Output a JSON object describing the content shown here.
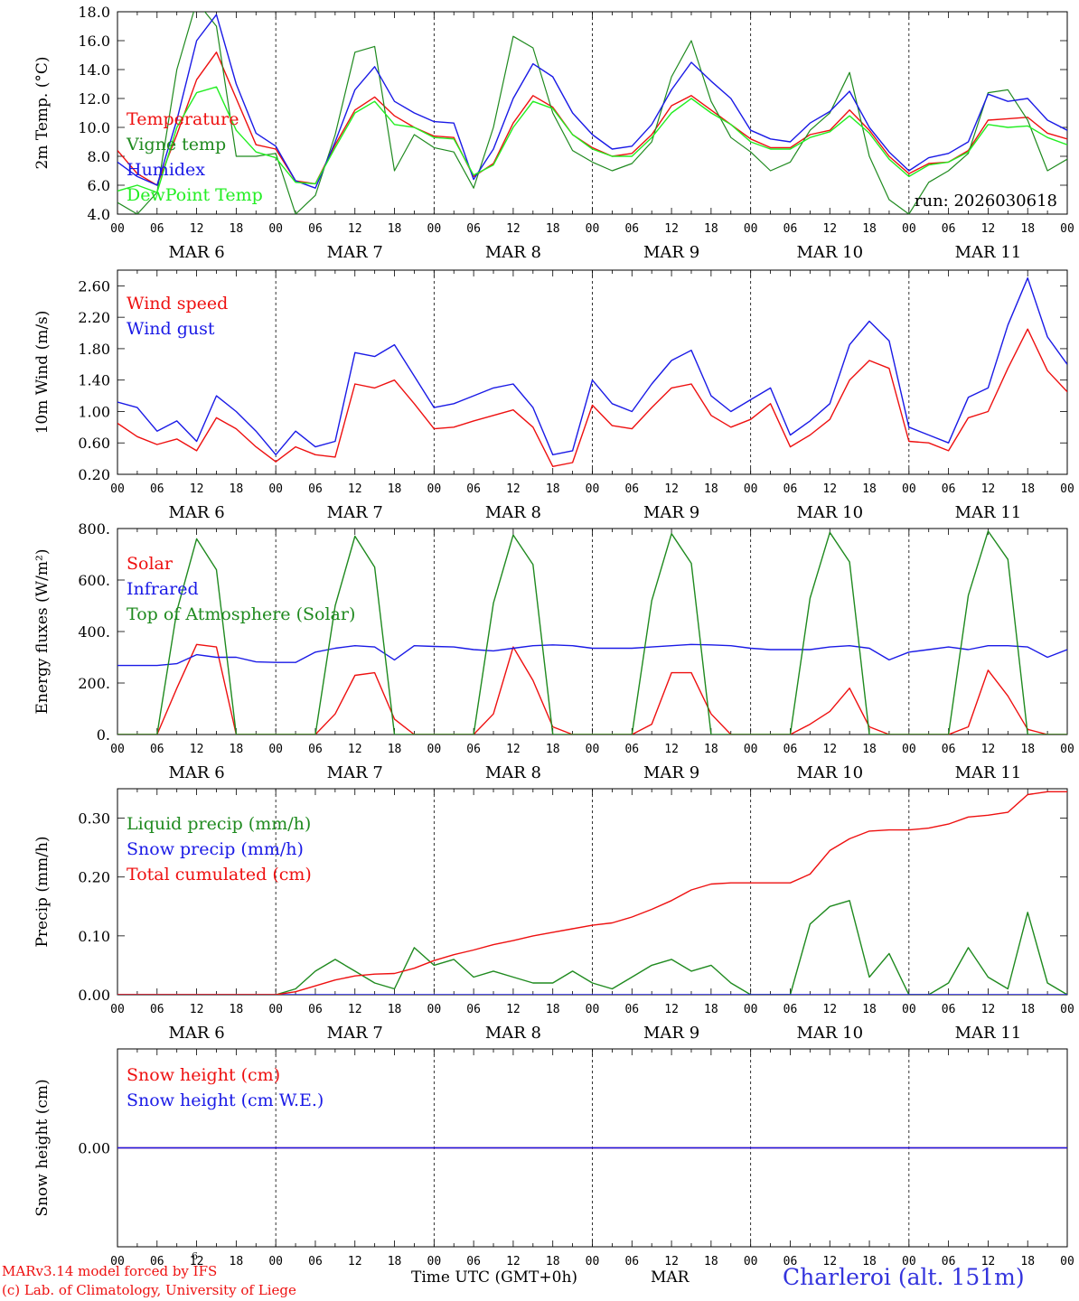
{
  "run_label": "run: 2026030618",
  "day_labels": [
    "MAR  6",
    "MAR  7",
    "MAR  8",
    "MAR  9",
    "MAR 10",
    "MAR 11"
  ],
  "hour_ticks": [
    "00",
    "06",
    "12",
    "18",
    "00",
    "06",
    "12",
    "18",
    "00",
    "06",
    "12",
    "18",
    "00",
    "06",
    "12",
    "18",
    "00",
    "06",
    "12",
    "18",
    "00",
    "06",
    "12",
    "18",
    "00"
  ],
  "footer": {
    "model_line": "MARv3.14 model forced by IFS",
    "model_sup": "6",
    "credit_line": "(c) Lab. of Climatology, University of Liege",
    "time_label": "Time UTC (GMT+0h)",
    "month_label": "MAR",
    "station": "Charleroi (alt. 151m)"
  },
  "colors": {
    "red": "#ee1010",
    "green": "#1f8a1f",
    "blue": "#1a1ae6",
    "lightgreen": "#22ee22",
    "station": "#3333dd"
  },
  "chart_data": [
    {
      "type": "line",
      "ylabel": "2m Temp. (°C)",
      "ylim": [
        4.0,
        18.0
      ],
      "yticks": [
        "4.0",
        "6.0",
        "8.0",
        "10.0",
        "12.0",
        "14.0",
        "16.0",
        "18.0"
      ],
      "x": [
        0,
        3,
        6,
        9,
        12,
        15,
        18,
        21,
        24,
        27,
        30,
        33,
        36,
        39,
        42,
        45,
        48,
        51,
        54,
        57,
        60,
        63,
        66,
        69,
        72,
        75,
        78,
        81,
        84,
        87,
        90,
        93,
        96,
        99,
        102,
        105,
        108,
        111,
        114,
        117,
        120,
        123,
        126,
        129,
        132,
        135,
        138,
        141,
        144
      ],
      "series": [
        {
          "name": "Temperature",
          "color": "red",
          "values": [
            8.4,
            6.8,
            6.0,
            9.5,
            13.3,
            15.2,
            12.0,
            8.8,
            8.5,
            6.3,
            6.1,
            8.8,
            11.2,
            12.1,
            10.8,
            10.0,
            9.4,
            9.3,
            6.6,
            7.5,
            10.3,
            12.2,
            11.4,
            9.5,
            8.6,
            8.0,
            8.2,
            9.5,
            11.5,
            12.2,
            11.2,
            10.2,
            9.2,
            8.6,
            8.6,
            9.5,
            9.8,
            11.2,
            9.8,
            8.0,
            6.8,
            7.5,
            7.6,
            8.4,
            10.5,
            10.6,
            10.7,
            9.6,
            9.2
          ]
        },
        {
          "name": "Vigne temp",
          "color": "green",
          "values": [
            4.8,
            4.0,
            5.5,
            14.0,
            18.7,
            17.0,
            8.0,
            8.0,
            8.2,
            4.0,
            5.3,
            9.5,
            15.2,
            15.6,
            7.0,
            9.5,
            8.6,
            8.3,
            5.8,
            10.0,
            16.3,
            15.5,
            11.0,
            8.4,
            7.6,
            7.0,
            7.5,
            9.0,
            13.5,
            16.0,
            11.8,
            9.3,
            8.3,
            7.0,
            7.6,
            9.8,
            11.0,
            13.8,
            8.0,
            5.0,
            4.0,
            6.2,
            7.0,
            8.2,
            12.4,
            12.6,
            10.5,
            7.0,
            7.8
          ]
        },
        {
          "name": "Humidex",
          "color": "blue",
          "values": [
            7.6,
            6.6,
            6.0,
            10.5,
            16.0,
            17.8,
            13.0,
            9.6,
            8.7,
            6.3,
            5.8,
            9.0,
            12.6,
            14.2,
            11.8,
            11.0,
            10.4,
            10.3,
            6.4,
            8.5,
            12.0,
            14.4,
            13.5,
            11.0,
            9.5,
            8.5,
            8.7,
            10.2,
            12.6,
            14.5,
            13.2,
            12.0,
            9.8,
            9.2,
            9.0,
            10.3,
            11.1,
            12.5,
            10.0,
            8.3,
            7.0,
            7.9,
            8.2,
            9.0,
            12.3,
            11.8,
            12.0,
            10.5,
            9.8
          ]
        },
        {
          "name": "DewPoint Temp",
          "color": "lightgreen",
          "values": [
            5.6,
            6.0,
            5.5,
            10.0,
            12.4,
            12.8,
            9.8,
            8.3,
            7.9,
            6.2,
            6.1,
            8.6,
            11.0,
            11.8,
            10.2,
            10.0,
            9.3,
            9.2,
            6.7,
            7.4,
            10.0,
            11.8,
            11.3,
            9.5,
            8.5,
            8.0,
            8.0,
            9.3,
            11.0,
            12.0,
            11.0,
            10.2,
            9.0,
            8.5,
            8.5,
            9.3,
            9.7,
            10.8,
            9.6,
            7.8,
            6.6,
            7.4,
            7.6,
            8.3,
            10.2,
            10.0,
            10.1,
            9.3,
            8.8
          ]
        }
      ]
    },
    {
      "type": "line",
      "ylabel": "10m Wind (m/s)",
      "ylim": [
        0.2,
        2.8
      ],
      "yticks": [
        "0.20",
        "0.60",
        "1.00",
        "1.40",
        "1.80",
        "2.20",
        "2.60"
      ],
      "x": [
        0,
        3,
        6,
        9,
        12,
        15,
        18,
        21,
        24,
        27,
        30,
        33,
        36,
        39,
        42,
        45,
        48,
        51,
        54,
        57,
        60,
        63,
        66,
        69,
        72,
        75,
        78,
        81,
        84,
        87,
        90,
        93,
        96,
        99,
        102,
        105,
        108,
        111,
        114,
        117,
        120,
        123,
        126,
        129,
        132,
        135,
        138,
        141,
        144
      ],
      "series": [
        {
          "name": "Wind speed",
          "color": "red",
          "values": [
            0.85,
            0.68,
            0.58,
            0.65,
            0.5,
            0.92,
            0.78,
            0.55,
            0.36,
            0.55,
            0.45,
            0.42,
            1.35,
            1.3,
            1.4,
            1.1,
            0.78,
            0.8,
            0.88,
            0.95,
            1.02,
            0.8,
            0.3,
            0.35,
            1.08,
            0.82,
            0.78,
            1.05,
            1.3,
            1.35,
            0.95,
            0.8,
            0.9,
            1.1,
            0.55,
            0.7,
            0.9,
            1.4,
            1.65,
            1.55,
            0.62,
            0.6,
            0.5,
            0.92,
            1.0,
            1.55,
            2.05,
            1.52,
            1.25
          ]
        },
        {
          "name": "Wind gust",
          "color": "blue",
          "values": [
            1.12,
            1.05,
            0.75,
            0.88,
            0.62,
            1.2,
            1.0,
            0.75,
            0.45,
            0.75,
            0.55,
            0.62,
            1.75,
            1.7,
            1.85,
            1.45,
            1.05,
            1.1,
            1.2,
            1.3,
            1.35,
            1.05,
            0.45,
            0.5,
            1.4,
            1.1,
            1.0,
            1.35,
            1.65,
            1.78,
            1.2,
            1.0,
            1.15,
            1.3,
            0.7,
            0.88,
            1.1,
            1.85,
            2.15,
            1.9,
            0.8,
            0.7,
            0.6,
            1.18,
            1.3,
            2.1,
            2.7,
            1.95,
            1.6
          ]
        }
      ]
    },
    {
      "type": "line",
      "ylabel": "Energy fluxes (W/m²)",
      "ylim": [
        0,
        800
      ],
      "yticks": [
        "0.",
        "200.",
        "400.",
        "600.",
        "800."
      ],
      "x": [
        0,
        3,
        6,
        9,
        12,
        15,
        18,
        21,
        24,
        27,
        30,
        33,
        36,
        39,
        42,
        45,
        48,
        51,
        54,
        57,
        60,
        63,
        66,
        69,
        72,
        75,
        78,
        81,
        84,
        87,
        90,
        93,
        96,
        99,
        102,
        105,
        108,
        111,
        114,
        117,
        120,
        123,
        126,
        129,
        132,
        135,
        138,
        141,
        144
      ],
      "series": [
        {
          "name": "Solar",
          "color": "red",
          "values": [
            0,
            0,
            0,
            180,
            350,
            340,
            0,
            0,
            0,
            0,
            0,
            80,
            230,
            240,
            60,
            0,
            0,
            0,
            0,
            80,
            340,
            210,
            30,
            0,
            0,
            0,
            0,
            40,
            240,
            240,
            80,
            0,
            0,
            0,
            0,
            40,
            90,
            180,
            30,
            0,
            0,
            0,
            0,
            30,
            250,
            150,
            20,
            0,
            0
          ]
        },
        {
          "name": "Infrared",
          "color": "blue",
          "values": [
            268,
            268,
            268,
            275,
            310,
            300,
            300,
            282,
            280,
            280,
            320,
            335,
            345,
            340,
            290,
            345,
            342,
            340,
            330,
            325,
            335,
            345,
            348,
            345,
            335,
            335,
            335,
            340,
            345,
            350,
            348,
            345,
            335,
            330,
            330,
            330,
            340,
            345,
            335,
            290,
            320,
            330,
            340,
            330,
            345,
            345,
            340,
            300,
            330
          ]
        },
        {
          "name": "Top of Atmosphere (Solar)",
          "color": "green",
          "values": [
            0,
            0,
            0,
            480,
            760,
            640,
            0,
            0,
            0,
            0,
            0,
            500,
            770,
            650,
            0,
            0,
            0,
            0,
            0,
            510,
            775,
            660,
            0,
            0,
            0,
            0,
            0,
            520,
            780,
            665,
            0,
            0,
            0,
            0,
            0,
            530,
            785,
            670,
            0,
            0,
            0,
            0,
            0,
            540,
            790,
            680,
            0,
            0,
            0
          ]
        }
      ]
    },
    {
      "type": "line",
      "ylabel": "Precip (mm/h)",
      "ylim": [
        0,
        0.35
      ],
      "yticks": [
        "0.00",
        "0.10",
        "0.20",
        "0.30"
      ],
      "x": [
        0,
        3,
        6,
        9,
        12,
        15,
        18,
        21,
        24,
        27,
        30,
        33,
        36,
        39,
        42,
        45,
        48,
        51,
        54,
        57,
        60,
        63,
        66,
        69,
        72,
        75,
        78,
        81,
        84,
        87,
        90,
        93,
        96,
        99,
        102,
        105,
        108,
        111,
        114,
        117,
        120,
        123,
        126,
        129,
        132,
        135,
        138,
        141,
        144
      ],
      "series": [
        {
          "name": "Liquid precip (mm/h)",
          "color": "green",
          "values": [
            0,
            0,
            0,
            0,
            0,
            0,
            0,
            0,
            0,
            0.01,
            0.04,
            0.06,
            0.04,
            0.02,
            0.01,
            0.08,
            0.05,
            0.06,
            0.03,
            0.04,
            0.03,
            0.02,
            0.02,
            0.04,
            0.02,
            0.01,
            0.03,
            0.05,
            0.06,
            0.04,
            0.05,
            0.02,
            0,
            0,
            0,
            0.12,
            0.15,
            0.16,
            0.03,
            0.07,
            0,
            0,
            0.02,
            0.08,
            0.03,
            0.01,
            0.14,
            0.02,
            0
          ]
        },
        {
          "name": "Snow precip (mm/h)",
          "color": "blue",
          "values": [
            0,
            0,
            0,
            0,
            0,
            0,
            0,
            0,
            0,
            0,
            0,
            0,
            0,
            0,
            0,
            0,
            0,
            0,
            0,
            0,
            0,
            0,
            0,
            0,
            0,
            0,
            0,
            0,
            0,
            0,
            0,
            0,
            0,
            0,
            0,
            0,
            0,
            0,
            0,
            0,
            0,
            0,
            0,
            0,
            0,
            0,
            0,
            0,
            0
          ]
        },
        {
          "name": "Total cumulated (cm)",
          "color": "red",
          "values": [
            0,
            0,
            0,
            0,
            0,
            0,
            0,
            0,
            0,
            0.005,
            0.015,
            0.025,
            0.032,
            0.035,
            0.036,
            0.045,
            0.058,
            0.068,
            0.076,
            0.085,
            0.092,
            0.1,
            0.106,
            0.112,
            0.118,
            0.122,
            0.132,
            0.145,
            0.16,
            0.178,
            0.188,
            0.19,
            0.19,
            0.19,
            0.19,
            0.205,
            0.245,
            0.265,
            0.278,
            0.28,
            0.28,
            0.283,
            0.29,
            0.302,
            0.305,
            0.31,
            0.34,
            0.345,
            0.345
          ]
        }
      ]
    },
    {
      "type": "line",
      "ylabel": "Snow height (cm)",
      "ylim": [
        -1,
        1
      ],
      "yticks": [
        "0.00"
      ],
      "x": [
        0,
        144
      ],
      "series": [
        {
          "name": "Snow height (cm)",
          "color": "red",
          "values": [
            0,
            0
          ]
        },
        {
          "name": "Snow height (cm W.E.)",
          "color": "blue",
          "values": [
            0,
            0
          ]
        }
      ]
    }
  ]
}
